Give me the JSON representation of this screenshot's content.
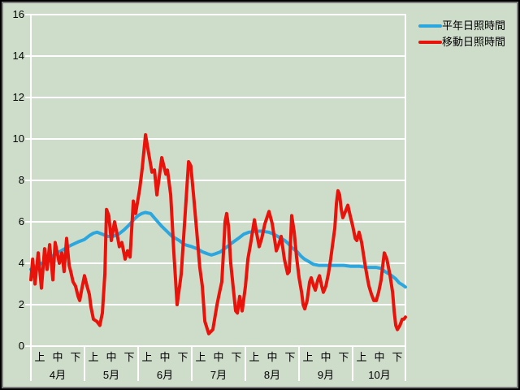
{
  "window": {
    "background_color": "#cedcca",
    "frame_color": "#000000",
    "gridline_color": "#ffffff"
  },
  "legend": {
    "items": [
      {
        "label": "平年日照時間",
        "color": "#2ba6de"
      },
      {
        "label": "移動日照時間",
        "color": "#e8130b"
      }
    ]
  },
  "chart_data": {
    "type": "line",
    "title": "",
    "xlabel": "",
    "ylabel": "",
    "ylim": [
      0,
      16
    ],
    "y_ticks": [
      16,
      14,
      12,
      10,
      8,
      6,
      4,
      2,
      0
    ],
    "grid": true,
    "legend_position": "top-right",
    "months": [
      "4月",
      "5月",
      "6月",
      "7月",
      "8月",
      "9月",
      "10月"
    ],
    "period_labels": [
      "上",
      "中",
      "下"
    ],
    "x_span_days": 209.5,
    "series": [
      {
        "name": "平年日照時間",
        "color": "#2ba6de",
        "stroke_width": 4,
        "points": [
          [
            0,
            3.7
          ],
          [
            4,
            3.9
          ],
          [
            9,
            4.15
          ],
          [
            13,
            4.4
          ],
          [
            18,
            4.65
          ],
          [
            22,
            4.85
          ],
          [
            27,
            5.05
          ],
          [
            30,
            5.15
          ],
          [
            33,
            5.35
          ],
          [
            35,
            5.45
          ],
          [
            37,
            5.5
          ],
          [
            40,
            5.4
          ],
          [
            43,
            5.3
          ],
          [
            46,
            5.3
          ],
          [
            49,
            5.4
          ],
          [
            52,
            5.6
          ],
          [
            55,
            5.85
          ],
          [
            58,
            6.15
          ],
          [
            60,
            6.3
          ],
          [
            62,
            6.4
          ],
          [
            64,
            6.45
          ],
          [
            67,
            6.4
          ],
          [
            70,
            6.1
          ],
          [
            73,
            5.8
          ],
          [
            76,
            5.55
          ],
          [
            79,
            5.3
          ],
          [
            83,
            5.1
          ],
          [
            86,
            4.9
          ],
          [
            90,
            4.8
          ],
          [
            93,
            4.7
          ],
          [
            96,
            4.55
          ],
          [
            99,
            4.45
          ],
          [
            101,
            4.4
          ],
          [
            103,
            4.45
          ],
          [
            106,
            4.55
          ],
          [
            109,
            4.75
          ],
          [
            112,
            4.95
          ],
          [
            116,
            5.2
          ],
          [
            119,
            5.4
          ],
          [
            122,
            5.5
          ],
          [
            126,
            5.55
          ],
          [
            129,
            5.55
          ],
          [
            133,
            5.5
          ],
          [
            136,
            5.4
          ],
          [
            139,
            5.25
          ],
          [
            142,
            5.1
          ],
          [
            144,
            4.95
          ],
          [
            146,
            4.75
          ],
          [
            149,
            4.55
          ],
          [
            151,
            4.35
          ],
          [
            153,
            4.2
          ],
          [
            156,
            4.05
          ],
          [
            158,
            3.95
          ],
          [
            161,
            3.9
          ],
          [
            166,
            3.9
          ],
          [
            170,
            3.9
          ],
          [
            175,
            3.9
          ],
          [
            179,
            3.85
          ],
          [
            184,
            3.85
          ],
          [
            188,
            3.8
          ],
          [
            193,
            3.8
          ],
          [
            196,
            3.75
          ],
          [
            198,
            3.6
          ],
          [
            201,
            3.45
          ],
          [
            204,
            3.25
          ],
          [
            206,
            3.05
          ],
          [
            208,
            2.95
          ],
          [
            209.5,
            2.85
          ]
        ]
      },
      {
        "name": "移動日照時間",
        "color": "#e8130b",
        "stroke_width": 4,
        "points": [
          [
            0,
            3.2
          ],
          [
            1,
            4.2
          ],
          [
            2.3,
            3.0
          ],
          [
            4.1,
            4.5
          ],
          [
            5.9,
            2.8
          ],
          [
            7.7,
            4.7
          ],
          [
            9.1,
            3.7
          ],
          [
            10.5,
            4.9
          ],
          [
            12.3,
            3.2
          ],
          [
            13.6,
            5.0
          ],
          [
            15.9,
            4.0
          ],
          [
            17.3,
            4.5
          ],
          [
            18.6,
            3.6
          ],
          [
            20,
            5.2
          ],
          [
            21.4,
            3.9
          ],
          [
            22.3,
            3.6
          ],
          [
            23.6,
            3.1
          ],
          [
            25,
            2.9
          ],
          [
            26.4,
            2.4
          ],
          [
            27.3,
            2.2
          ],
          [
            28.6,
            2.8
          ],
          [
            30,
            3.4
          ],
          [
            31.4,
            2.9
          ],
          [
            32.7,
            2.5
          ],
          [
            33.6,
            1.9
          ],
          [
            35,
            1.3
          ],
          [
            36.8,
            1.2
          ],
          [
            38.6,
            1.0
          ],
          [
            40,
            1.6
          ],
          [
            41.4,
            3.5
          ],
          [
            42.3,
            6.6
          ],
          [
            43.6,
            6.3
          ],
          [
            45,
            5.1
          ],
          [
            46.8,
            6.0
          ],
          [
            48.2,
            5.4
          ],
          [
            49.5,
            4.8
          ],
          [
            50.9,
            5.0
          ],
          [
            52.7,
            4.2
          ],
          [
            54.1,
            4.6
          ],
          [
            55.5,
            4.3
          ],
          [
            57.3,
            7.0
          ],
          [
            58.6,
            6.4
          ],
          [
            60.9,
            7.6
          ],
          [
            62.3,
            8.6
          ],
          [
            64.1,
            10.2
          ],
          [
            65.9,
            9.3
          ],
          [
            67.7,
            8.4
          ],
          [
            69.1,
            8.5
          ],
          [
            70.5,
            7.3
          ],
          [
            73.2,
            9.1
          ],
          [
            75.5,
            8.3
          ],
          [
            76.4,
            8.5
          ],
          [
            78.2,
            7.3
          ],
          [
            80,
            4.5
          ],
          [
            81.8,
            2.0
          ],
          [
            84.1,
            3.5
          ],
          [
            86.4,
            6.5
          ],
          [
            88.2,
            8.9
          ],
          [
            89.5,
            8.7
          ],
          [
            91.4,
            6.9
          ],
          [
            92.7,
            5.6
          ],
          [
            94.5,
            3.8
          ],
          [
            95.9,
            2.9
          ],
          [
            97.3,
            1.2
          ],
          [
            99.5,
            0.6
          ],
          [
            101.8,
            0.8
          ],
          [
            104.1,
            2.0
          ],
          [
            105.5,
            2.6
          ],
          [
            106.8,
            3.1
          ],
          [
            107.7,
            4.5
          ],
          [
            108.6,
            6.0
          ],
          [
            109.5,
            6.4
          ],
          [
            110.5,
            5.8
          ],
          [
            111.8,
            4.0
          ],
          [
            113.2,
            2.8
          ],
          [
            114.5,
            1.7
          ],
          [
            115.5,
            1.6
          ],
          [
            116.8,
            2.4
          ],
          [
            118.2,
            1.7
          ],
          [
            120,
            2.9
          ],
          [
            121.4,
            4.2
          ],
          [
            123.2,
            5.1
          ],
          [
            125,
            6.1
          ],
          [
            126.4,
            5.4
          ],
          [
            127.7,
            4.8
          ],
          [
            129.1,
            5.2
          ],
          [
            130.9,
            5.9
          ],
          [
            133.2,
            6.5
          ],
          [
            135,
            5.9
          ],
          [
            137.3,
            4.6
          ],
          [
            138.6,
            4.9
          ],
          [
            140,
            5.3
          ],
          [
            141.8,
            4.2
          ],
          [
            143.6,
            3.5
          ],
          [
            144.5,
            3.6
          ],
          [
            145.9,
            6.3
          ],
          [
            147.3,
            5.5
          ],
          [
            148.6,
            4.3
          ],
          [
            150,
            3.3
          ],
          [
            151.4,
            2.6
          ],
          [
            152.3,
            2.0
          ],
          [
            153.2,
            1.8
          ],
          [
            154.5,
            2.2
          ],
          [
            155.9,
            3.1
          ],
          [
            156.8,
            3.3
          ],
          [
            158.2,
            2.9
          ],
          [
            159.1,
            2.7
          ],
          [
            160.5,
            3.2
          ],
          [
            161.4,
            3.4
          ],
          [
            162.7,
            2.9
          ],
          [
            163.6,
            2.6
          ],
          [
            165,
            2.9
          ],
          [
            166.4,
            3.5
          ],
          [
            167.7,
            4.2
          ],
          [
            168.6,
            4.8
          ],
          [
            170,
            5.7
          ],
          [
            170.9,
            6.9
          ],
          [
            171.8,
            7.5
          ],
          [
            172.7,
            7.3
          ],
          [
            173.6,
            6.6
          ],
          [
            174.5,
            6.2
          ],
          [
            175.9,
            6.5
          ],
          [
            177.3,
            6.8
          ],
          [
            178.6,
            6.3
          ],
          [
            180,
            5.8
          ],
          [
            181.4,
            5.2
          ],
          [
            182.3,
            5.1
          ],
          [
            183.6,
            5.5
          ],
          [
            185,
            5.0
          ],
          [
            186.8,
            4.0
          ],
          [
            188.2,
            3.3
          ],
          [
            189.1,
            2.9
          ],
          [
            190.5,
            2.5
          ],
          [
            191.8,
            2.2
          ],
          [
            193.2,
            2.2
          ],
          [
            194.5,
            2.6
          ],
          [
            195.9,
            3.2
          ],
          [
            196.8,
            3.9
          ],
          [
            197.7,
            4.5
          ],
          [
            199.1,
            4.2
          ],
          [
            200.9,
            3.4
          ],
          [
            202.3,
            2.6
          ],
          [
            203.2,
            1.7
          ],
          [
            204.1,
            1.0
          ],
          [
            205,
            0.8
          ],
          [
            206.4,
            1.0
          ],
          [
            207.7,
            1.3
          ],
          [
            208.6,
            1.3
          ],
          [
            209.5,
            1.4
          ]
        ]
      }
    ]
  }
}
